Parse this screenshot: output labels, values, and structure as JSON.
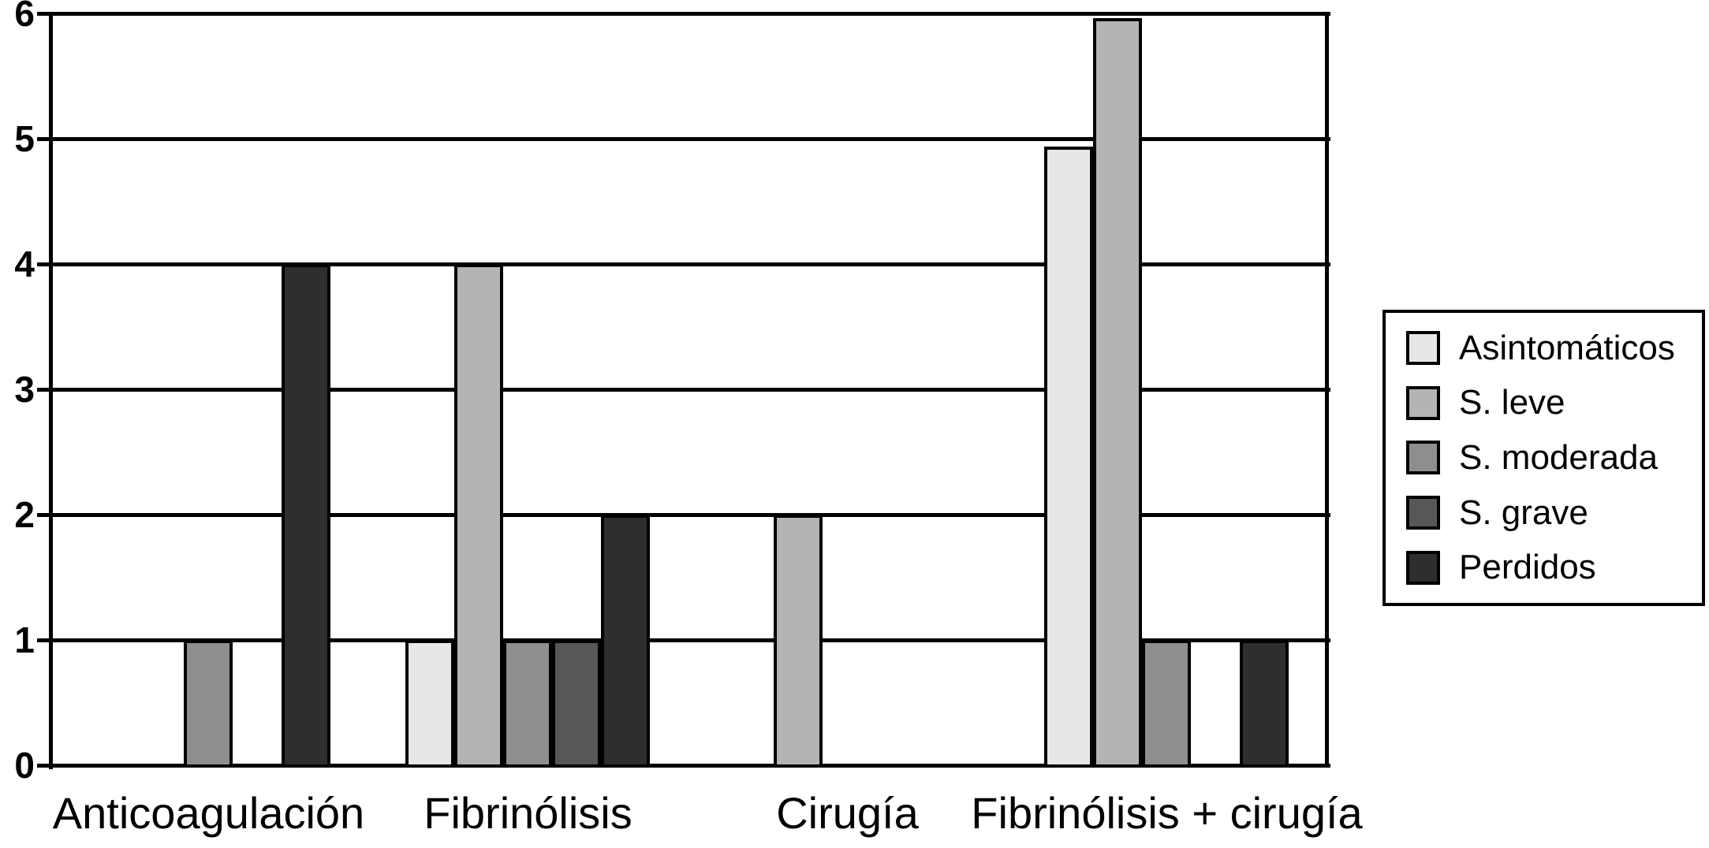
{
  "chart_data": {
    "type": "bar",
    "title": "",
    "xlabel": "",
    "ylabel": "",
    "categories": [
      "Anticoagulación",
      "Fibrinólisis",
      "Cirugía",
      "Fibrinólisis + cirugía"
    ],
    "series": [
      {
        "name": "Asintomáticos",
        "color": "#e7e7e7",
        "values": [
          0,
          1,
          0,
          4.94
        ]
      },
      {
        "name": "S. leve",
        "color": "#b4b4b4",
        "values": [
          0,
          4,
          2,
          5.96
        ]
      },
      {
        "name": "S. moderada",
        "color": "#8e8e8e",
        "values": [
          1,
          1,
          0,
          1
        ]
      },
      {
        "name": "S. grave",
        "color": "#575757",
        "values": [
          0,
          1,
          0,
          0
        ]
      },
      {
        "name": "Perdidos",
        "color": "#2e2e2e",
        "values": [
          4,
          2,
          0,
          1
        ]
      }
    ],
    "y_axis": {
      "min": 0,
      "max": 6,
      "tick_step": 1,
      "tick_labels": [
        "0",
        "1",
        "2",
        "3",
        "4",
        "5",
        "6"
      ]
    },
    "legend": {
      "position": "right",
      "entries": [
        "Asintomáticos",
        "S. leve",
        "S. moderada",
        "S. grave",
        "Perdidos"
      ]
    },
    "grid": true,
    "bar_outline_color": "#000000",
    "axis_color": "#000000",
    "background_color": "#ffffff"
  }
}
